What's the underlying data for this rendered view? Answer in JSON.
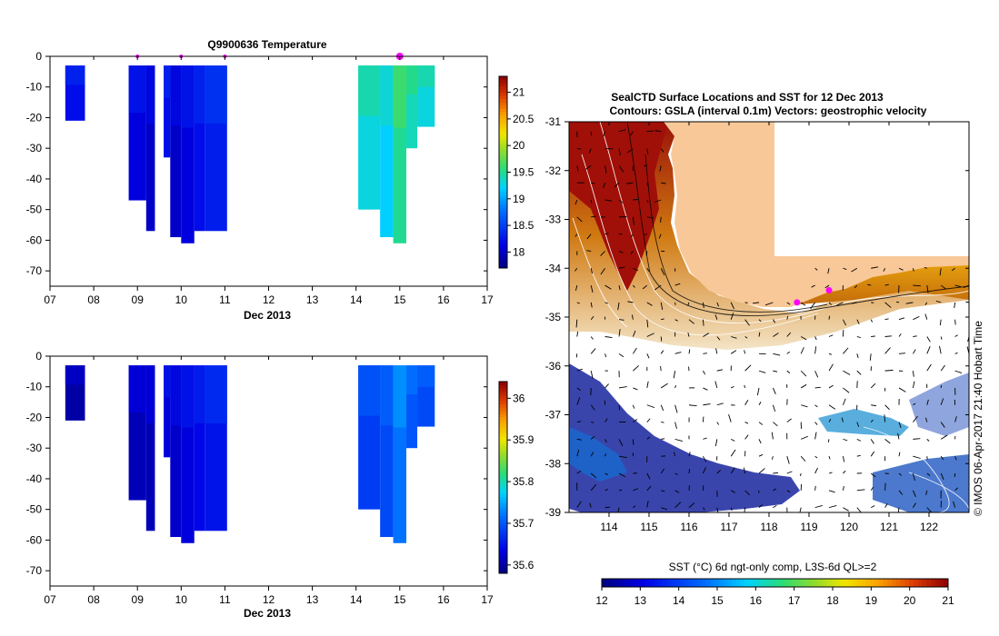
{
  "chart_data": [
    {
      "type": "heatmap",
      "title": "Q9900636  Temperature",
      "xlabel": "Dec 2013",
      "ylabel": "",
      "xlim": [
        7,
        17
      ],
      "ylim": [
        -75,
        0
      ],
      "x_ticks": [
        "07",
        "08",
        "09",
        "10",
        "11",
        "12",
        "13",
        "14",
        "15",
        "16",
        "17"
      ],
      "y_ticks": [
        "0",
        "-10",
        "-20",
        "-30",
        "-40",
        "-50",
        "-60",
        "-70"
      ],
      "colorbar": {
        "min": 17.7,
        "max": 21.3,
        "ticks": [
          "18",
          "18.5",
          "19",
          "19.5",
          "20",
          "20.5",
          "21"
        ]
      },
      "markers_day": [
        9.0,
        10.0,
        11.0,
        15.0
      ],
      "highlight_marker_day": 15.0,
      "profiles": [
        {
          "x0": 7.35,
          "x1": 7.8,
          "top": -3,
          "bottom": -21,
          "value": 18.2
        },
        {
          "x0": 8.8,
          "x1": 9.2,
          "top": -3,
          "bottom": -47,
          "value": 18.1
        },
        {
          "x0": 9.2,
          "x1": 9.4,
          "top": -3,
          "bottom": -57,
          "value": 18.0
        },
        {
          "x0": 9.6,
          "x1": 9.75,
          "top": -3,
          "bottom": -33,
          "value": 18.2
        },
        {
          "x0": 9.75,
          "x1": 10.0,
          "top": -3,
          "bottom": -59,
          "value": 18.0
        },
        {
          "x0": 10.0,
          "x1": 10.3,
          "top": -3,
          "bottom": -61,
          "value": 18.1
        },
        {
          "x0": 10.3,
          "x1": 10.55,
          "top": -3,
          "bottom": -57,
          "value": 18.2
        },
        {
          "x0": 10.55,
          "x1": 11.05,
          "top": -3,
          "bottom": -57,
          "value": 18.3
        },
        {
          "x0": 14.05,
          "x1": 14.55,
          "top": -3,
          "bottom": -50,
          "value": 19.3
        },
        {
          "x0": 14.55,
          "x1": 14.85,
          "top": -3,
          "bottom": -59,
          "value": 19.2
        },
        {
          "x0": 14.85,
          "x1": 15.15,
          "top": -3,
          "bottom": -61,
          "value": 19.5
        },
        {
          "x0": 15.15,
          "x1": 15.4,
          "top": -3,
          "bottom": -30,
          "value": 19.4
        },
        {
          "x0": 15.4,
          "x1": 15.8,
          "top": -3,
          "bottom": -23,
          "value": 19.3
        }
      ]
    },
    {
      "type": "heatmap",
      "title": "",
      "xlabel": "Dec 2013",
      "ylabel": "",
      "xlim": [
        7,
        17
      ],
      "ylim": [
        -75,
        0
      ],
      "x_ticks": [
        "07",
        "08",
        "09",
        "10",
        "11",
        "12",
        "13",
        "14",
        "15",
        "16",
        "17"
      ],
      "y_ticks": [
        "0",
        "-10",
        "-20",
        "-30",
        "-40",
        "-50",
        "-60",
        "-70"
      ],
      "colorbar": {
        "min": 35.58,
        "max": 36.04,
        "ticks": [
          "35.6",
          "35.7",
          "35.8",
          "35.9",
          "36"
        ]
      },
      "profiles": [
        {
          "x0": 7.35,
          "x1": 7.8,
          "top": -3,
          "bottom": -21,
          "value": 35.6
        },
        {
          "x0": 8.8,
          "x1": 9.2,
          "top": -3,
          "bottom": -47,
          "value": 35.61
        },
        {
          "x0": 9.2,
          "x1": 9.4,
          "top": -3,
          "bottom": -57,
          "value": 35.61
        },
        {
          "x0": 9.6,
          "x1": 9.75,
          "top": -3,
          "bottom": -33,
          "value": 35.63
        },
        {
          "x0": 9.75,
          "x1": 10.0,
          "top": -3,
          "bottom": -59,
          "value": 35.62
        },
        {
          "x0": 10.0,
          "x1": 10.3,
          "top": -3,
          "bottom": -61,
          "value": 35.63
        },
        {
          "x0": 10.3,
          "x1": 10.55,
          "top": -3,
          "bottom": -57,
          "value": 35.64
        },
        {
          "x0": 10.55,
          "x1": 11.05,
          "top": -3,
          "bottom": -57,
          "value": 35.65
        },
        {
          "x0": 14.05,
          "x1": 14.55,
          "top": -3,
          "bottom": -50,
          "value": 35.68
        },
        {
          "x0": 14.55,
          "x1": 14.85,
          "top": -3,
          "bottom": -59,
          "value": 35.69
        },
        {
          "x0": 14.85,
          "x1": 15.15,
          "top": -3,
          "bottom": -61,
          "value": 35.72
        },
        {
          "x0": 15.15,
          "x1": 15.4,
          "top": -3,
          "bottom": -30,
          "value": 35.7
        },
        {
          "x0": 15.4,
          "x1": 15.8,
          "top": -3,
          "bottom": -23,
          "value": 35.69
        }
      ]
    },
    {
      "type": "heatmap",
      "title": "SealCTD Surface Locations and SST for 12 Dec 2013",
      "subtitle": "Contours: GSLA (interval 0.1m) Vectors: geostrophic velocity",
      "xlabel": "",
      "ylabel": "",
      "xlim": [
        113,
        123
      ],
      "ylim": [
        -39,
        -31
      ],
      "x_ticks": [
        "114",
        "115",
        "116",
        "117",
        "118",
        "119",
        "120",
        "121",
        "122"
      ],
      "y_ticks": [
        "-31",
        "-32",
        "-33",
        "-34",
        "-35",
        "-36",
        "-37",
        "-38",
        "-39"
      ],
      "colorbar": {
        "label": "SST (°C) 6d ngt-only comp, L3S-6d QL>=2",
        "min": 12,
        "max": 21,
        "ticks": [
          "12",
          "13",
          "14",
          "15",
          "16",
          "17",
          "18",
          "19",
          "20",
          "21"
        ]
      },
      "land": "Australia (south-west coast)",
      "seal_locations": [
        {
          "lon": 118.7,
          "lat": -34.7
        },
        {
          "lon": 119.5,
          "lat": -34.45
        }
      ],
      "side_label": "© IMOS 06-Apr-2017 21:40 Hobart Time"
    }
  ],
  "colors": {
    "land": "#f9c898",
    "magenta": "#ff00ff",
    "no_data": "#ffffff"
  }
}
